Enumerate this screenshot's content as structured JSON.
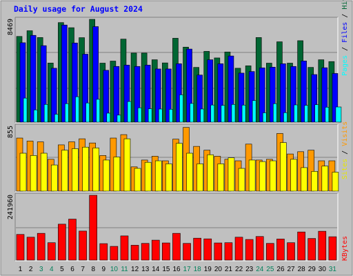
{
  "chart_data": {
    "type": "bar",
    "title": "Daily usage for August 2024",
    "categories": [
      "1",
      "2",
      "3",
      "4",
      "5",
      "6",
      "7",
      "8",
      "9",
      "10",
      "11",
      "12",
      "13",
      "14",
      "15",
      "16",
      "17",
      "18",
      "19",
      "20",
      "21",
      "22",
      "23",
      "24",
      "25",
      "26",
      "27",
      "28",
      "29",
      "30",
      "31"
    ],
    "weekend_days": [
      "3",
      "4",
      "10",
      "11",
      "17",
      "18",
      "24",
      "25",
      "31"
    ],
    "panels": [
      {
        "name": "hits-files-pages",
        "ytick_label": "8469",
        "ylim": [
          0,
          8469
        ],
        "series": [
          {
            "name": "Hits",
            "color": "#006633",
            "values": [
              7060,
              7530,
              6970,
              4870,
              8200,
              7780,
              6960,
              8469,
              4860,
              5030,
              6840,
              5690,
              5690,
              5140,
              4880,
              6910,
              6180,
              4510,
              5830,
              5290,
              5780,
              4440,
              4640,
              6970,
              4860,
              6620,
              4860,
              6710,
              4510,
              5140,
              4990
            ]
          },
          {
            "name": "Files",
            "color": "#0000ff",
            "values": [
              6540,
              7150,
              6300,
              4440,
              8000,
              6520,
              5600,
              7870,
              4270,
              4590,
              4700,
              4590,
              4700,
              4380,
              4380,
              4810,
              6020,
              3880,
              5140,
              4810,
              5450,
              4040,
              4170,
              4470,
              4530,
              4810,
              4590,
              5040,
              3920,
              4480,
              4010
            ]
          },
          {
            "name": "Pages",
            "color": "#00ffff",
            "values": [
              1980,
              1010,
              1460,
              650,
              1520,
              2090,
              1580,
              1880,
              740,
              580,
              1700,
              1180,
              1100,
              1080,
              1060,
              2250,
              1540,
              1080,
              1410,
              1380,
              1460,
              1400,
              1780,
              770,
              1520,
              780,
              1420,
              1380,
              1440,
              1230,
              1250
            ]
          }
        ]
      },
      {
        "name": "visits-sites",
        "ytick_label": "855",
        "ylim": [
          0,
          855
        ],
        "series": [
          {
            "name": "Visits",
            "color": "#ff9900",
            "values": [
              700,
              660,
              650,
              420,
              610,
              650,
              690,
              635,
              470,
              700,
              745,
              320,
              410,
              460,
              400,
              685,
              840,
              590,
              540,
              460,
              420,
              400,
              620,
              410,
              420,
              760,
              490,
              520,
              540,
              400,
              400
            ]
          },
          {
            "name": "Sites",
            "color": "#ffff00",
            "values": [
              500,
              470,
              500,
              345,
              540,
              560,
              580,
              570,
              410,
              450,
              690,
              300,
              380,
              400,
              360,
              630,
              500,
              360,
              480,
              360,
              440,
              300,
              410,
              390,
              400,
              640,
              420,
              310,
              260,
              330,
              250
            ]
          }
        ]
      },
      {
        "name": "kbytes",
        "ytick_label": "241960",
        "ylim": [
          0,
          241960
        ],
        "series": [
          {
            "name": "KBytes",
            "color": "#ff0000",
            "values": [
              95900,
              85600,
              100000,
              65100,
              134200,
              153000,
              108400,
              241960,
              61600,
              51400,
              90400,
              55600,
              62500,
              74500,
              64200,
              100000,
              62500,
              81900,
              79400,
              64200,
              65100,
              85600,
              77100,
              88200,
              62500,
              78800,
              65100,
              105100,
              80800,
              107800,
              87300
            ]
          }
        ]
      }
    ]
  }
}
